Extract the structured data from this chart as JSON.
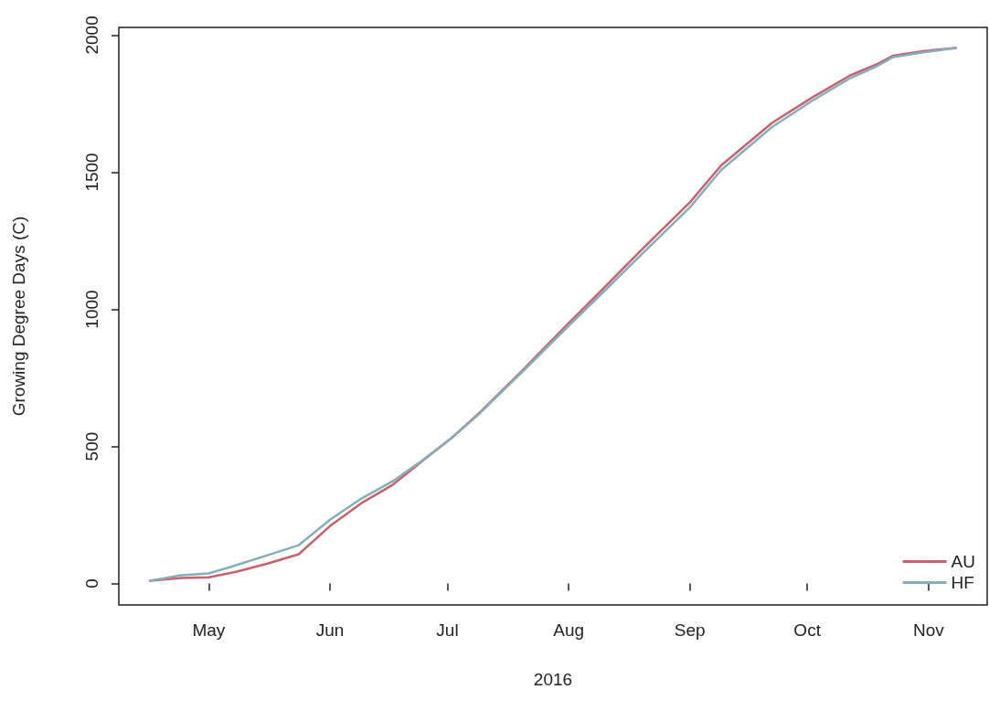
{
  "chart_data": {
    "type": "line",
    "xlabel": "2016",
    "ylabel": "Growing Degree Days (C)",
    "xlim": [
      "2016-04-08",
      "2016-11-16"
    ],
    "xticks": [
      {
        "value": "2016-05-01",
        "label": "May"
      },
      {
        "value": "2016-06-01",
        "label": "Jun"
      },
      {
        "value": "2016-07-01",
        "label": "Jul"
      },
      {
        "value": "2016-08-01",
        "label": "Aug"
      },
      {
        "value": "2016-09-01",
        "label": "Sep"
      },
      {
        "value": "2016-10-01",
        "label": "Oct"
      },
      {
        "value": "2016-11-01",
        "label": "Nov"
      }
    ],
    "ylim": [
      -78,
      2028
    ],
    "yticks": [
      0,
      500,
      1000,
      1500,
      2000
    ],
    "x": [
      "2016-04-16",
      "2016-04-24",
      "2016-05-01",
      "2016-05-08",
      "2016-05-16",
      "2016-05-24",
      "2016-06-01",
      "2016-06-09",
      "2016-06-17",
      "2016-06-24",
      "2016-07-02",
      "2016-07-09",
      "2016-07-20",
      "2016-08-01",
      "2016-08-10",
      "2016-08-20",
      "2016-09-01",
      "2016-09-09",
      "2016-09-22",
      "2016-10-02",
      "2016-10-12",
      "2016-10-19",
      "2016-10-23",
      "2016-10-31",
      "2016-11-08"
    ],
    "series": [
      {
        "name": "AU",
        "color": "#c8606e",
        "values": [
          10,
          20,
          23,
          43,
          73,
          107,
          210,
          293,
          360,
          440,
          530,
          620,
          775,
          950,
          1078,
          1222,
          1390,
          1525,
          1680,
          1770,
          1853,
          1895,
          1925,
          1942,
          1953
        ]
      },
      {
        "name": "HF",
        "color": "#86aeba",
        "values": [
          10,
          30,
          37,
          67,
          103,
          140,
          233,
          310,
          373,
          443,
          530,
          617,
          770,
          940,
          1065,
          1205,
          1372,
          1508,
          1665,
          1758,
          1843,
          1888,
          1920,
          1938,
          1953
        ]
      }
    ],
    "grid": false,
    "legend": "bottom right",
    "marker": "none",
    "line_style": "solid"
  }
}
